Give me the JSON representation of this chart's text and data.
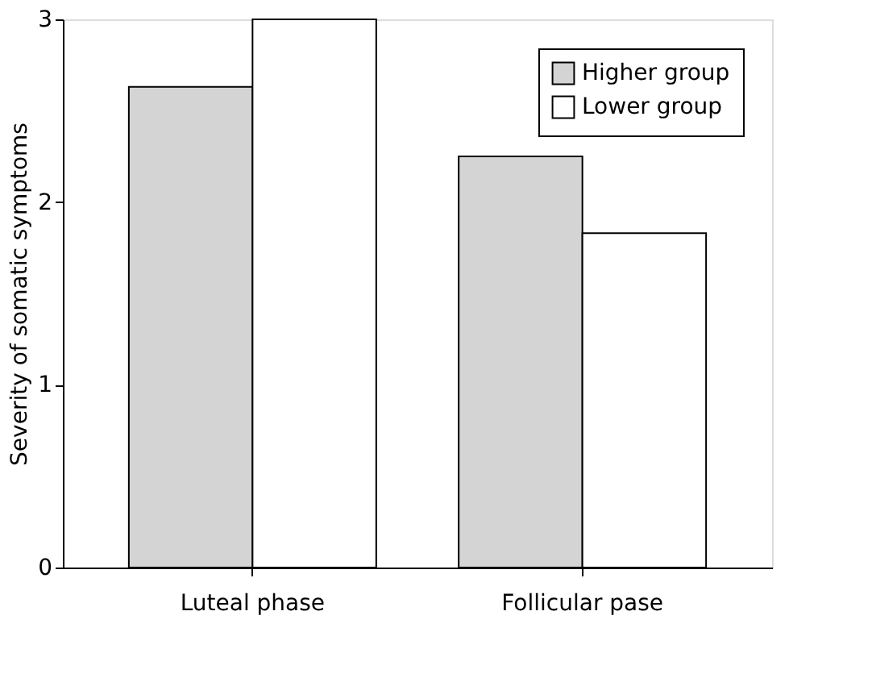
{
  "chart_data": {
    "type": "bar",
    "ylabel": "Severity of somatic symptoms",
    "categories": [
      "Luteal phase",
      "Follicular pase"
    ],
    "series": [
      {
        "name": "Higher group",
        "color": "#d4d4d4",
        "values": [
          2.63,
          2.25
        ]
      },
      {
        "name": "Lower group",
        "color": "#ffffff",
        "values": [
          3.0,
          1.83
        ]
      }
    ],
    "ylim": [
      0,
      3
    ],
    "yticks": [
      0,
      1,
      2,
      3
    ],
    "grid": false,
    "legend": "top right"
  }
}
